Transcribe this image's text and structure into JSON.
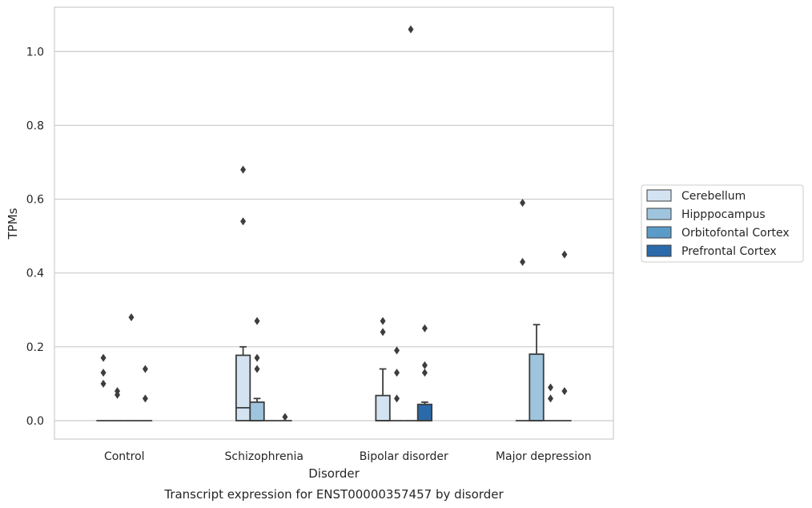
{
  "chart_data": {
    "type": "box",
    "title": "",
    "caption": "Transcript expression for ENST00000357457 by disorder",
    "xlabel": "Disorder",
    "ylabel": "TPMs",
    "ylim": [
      -0.05,
      1.12
    ],
    "yticks": [
      "0.0",
      "0.2",
      "0.4",
      "0.6",
      "0.8",
      "1.0"
    ],
    "grid": "horizontal",
    "legend_position": "right",
    "categories": [
      "Control",
      "Schizophrenia",
      "Bipolar disorder",
      "Major depression"
    ],
    "series": [
      {
        "name": "Cerebellum",
        "color": "#d4e3f2",
        "boxes": [
          {
            "q1": 0,
            "median": 0,
            "q3": 0,
            "whisker_low": 0,
            "whisker_high": 0,
            "outliers": [
              0.17,
              0.13,
              0.1
            ]
          },
          {
            "q1": 0,
            "median": 0.035,
            "q3": 0.177,
            "whisker_low": 0,
            "whisker_high": 0.2,
            "outliers": [
              0.68,
              0.54
            ]
          },
          {
            "q1": 0,
            "median": 0,
            "q3": 0.068,
            "whisker_low": 0,
            "whisker_high": 0.14,
            "outliers": [
              0.27,
              0.24
            ]
          },
          {
            "q1": 0,
            "median": 0,
            "q3": 0,
            "whisker_low": 0,
            "whisker_high": 0,
            "outliers": [
              0.59,
              0.43
            ]
          }
        ]
      },
      {
        "name": "Hipppocampus",
        "color": "#9fc5de",
        "boxes": [
          {
            "q1": 0,
            "median": 0,
            "q3": 0,
            "whisker_low": 0,
            "whisker_high": 0,
            "outliers": [
              0.08,
              0.07
            ]
          },
          {
            "q1": 0,
            "median": 0,
            "q3": 0.05,
            "whisker_low": 0,
            "whisker_high": 0.06,
            "outliers": [
              0.27,
              0.17,
              0.14
            ]
          },
          {
            "q1": 0,
            "median": 0,
            "q3": 0,
            "whisker_low": 0,
            "whisker_high": 0,
            "outliers": [
              0.19,
              0.13,
              0.06
            ]
          },
          {
            "q1": 0,
            "median": 0,
            "q3": 0.18,
            "whisker_low": 0,
            "whisker_high": 0.26,
            "outliers": []
          }
        ]
      },
      {
        "name": "Orbitofontal Cortex",
        "color": "#5b9bc8",
        "boxes": [
          {
            "q1": 0,
            "median": 0,
            "q3": 0,
            "whisker_low": 0,
            "whisker_high": 0,
            "outliers": [
              0.28
            ]
          },
          {
            "q1": 0,
            "median": 0,
            "q3": 0,
            "whisker_low": 0,
            "whisker_high": 0,
            "outliers": []
          },
          {
            "q1": 0,
            "median": 0,
            "q3": 0,
            "whisker_low": 0,
            "whisker_high": 0,
            "outliers": [
              1.06
            ]
          },
          {
            "q1": 0,
            "median": 0,
            "q3": 0,
            "whisker_low": 0,
            "whisker_high": 0,
            "outliers": [
              0.09,
              0.06
            ]
          }
        ]
      },
      {
        "name": "Prefrontal Cortex",
        "color": "#2b6aaa",
        "boxes": [
          {
            "q1": 0,
            "median": 0,
            "q3": 0,
            "whisker_low": 0,
            "whisker_high": 0,
            "outliers": [
              0.14,
              0.06
            ]
          },
          {
            "q1": 0,
            "median": 0,
            "q3": 0,
            "whisker_low": 0,
            "whisker_high": 0,
            "outliers": [
              0.01
            ]
          },
          {
            "q1": 0,
            "median": 0,
            "q3": 0.044,
            "whisker_low": 0,
            "whisker_high": 0.05,
            "outliers": [
              0.25,
              0.15,
              0.13
            ]
          },
          {
            "q1": 0,
            "median": 0,
            "q3": 0,
            "whisker_low": 0,
            "whisker_high": 0,
            "outliers": [
              0.45,
              0.08
            ]
          }
        ]
      }
    ]
  }
}
